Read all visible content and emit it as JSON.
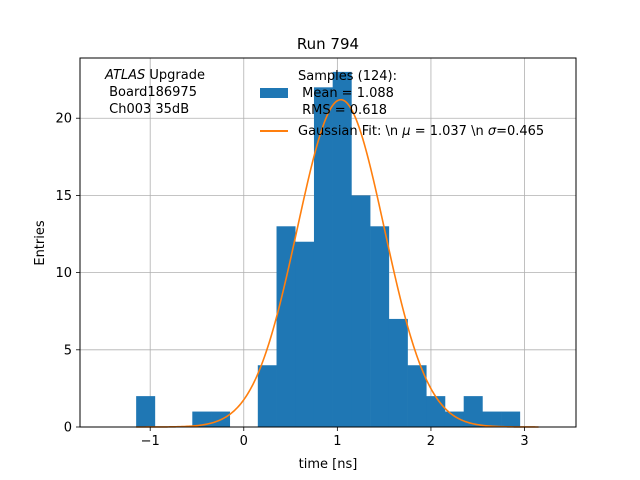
{
  "chart_data": {
    "type": "bar",
    "title": "Run 794",
    "xlabel": "time [ns]",
    "ylabel": "Entries",
    "xlim": [
      -1.75,
      3.55
    ],
    "ylim": [
      0,
      23.9
    ],
    "grid": true,
    "x_ticks": [
      -1,
      0,
      1,
      2,
      3
    ],
    "y_ticks": [
      0,
      5,
      10,
      15,
      20
    ],
    "bin_width": 0.2,
    "bins": [
      {
        "x0": -1.15,
        "count": 2
      },
      {
        "x0": -0.55,
        "count": 1
      },
      {
        "x0": -0.35,
        "count": 1
      },
      {
        "x0": 0.15,
        "count": 4
      },
      {
        "x0": 0.35,
        "count": 13
      },
      {
        "x0": 0.55,
        "count": 12
      },
      {
        "x0": 0.75,
        "count": 22
      },
      {
        "x0": 0.95,
        "count": 23
      },
      {
        "x0": 1.15,
        "count": 15
      },
      {
        "x0": 1.35,
        "count": 13
      },
      {
        "x0": 1.55,
        "count": 7
      },
      {
        "x0": 1.75,
        "count": 4
      },
      {
        "x0": 1.95,
        "count": 2
      },
      {
        "x0": 2.15,
        "count": 1
      },
      {
        "x0": 2.35,
        "count": 2
      },
      {
        "x0": 2.55,
        "count": 1
      },
      {
        "x0": 2.75,
        "count": 1
      }
    ],
    "fit": {
      "amplitude": 21.2,
      "mu": 1.037,
      "sigma": 0.465,
      "x_range": [
        -1.15,
        3.15
      ]
    },
    "annotation": {
      "atlas_italic": "ATLAS",
      "atlas_rest": " Upgrade",
      "line2": " Board186975",
      "line3": " Ch003 35dB"
    },
    "legend": {
      "placement": "top-right",
      "hist_line1": "Samples (124):",
      "hist_line2": " Mean = 1.088",
      "hist_line3": " RMS = 0.618",
      "fit_label_a": "Gaussian Fit: \\n ",
      "fit_label_mu": "μ",
      "fit_label_b": " = 1.037 \\n ",
      "fit_label_sigma": "σ",
      "fit_label_c": "=0.465"
    },
    "colors": {
      "bars": "#1f77b4",
      "fit": "#ff7f0e",
      "grid": "#b0b0b0"
    }
  }
}
